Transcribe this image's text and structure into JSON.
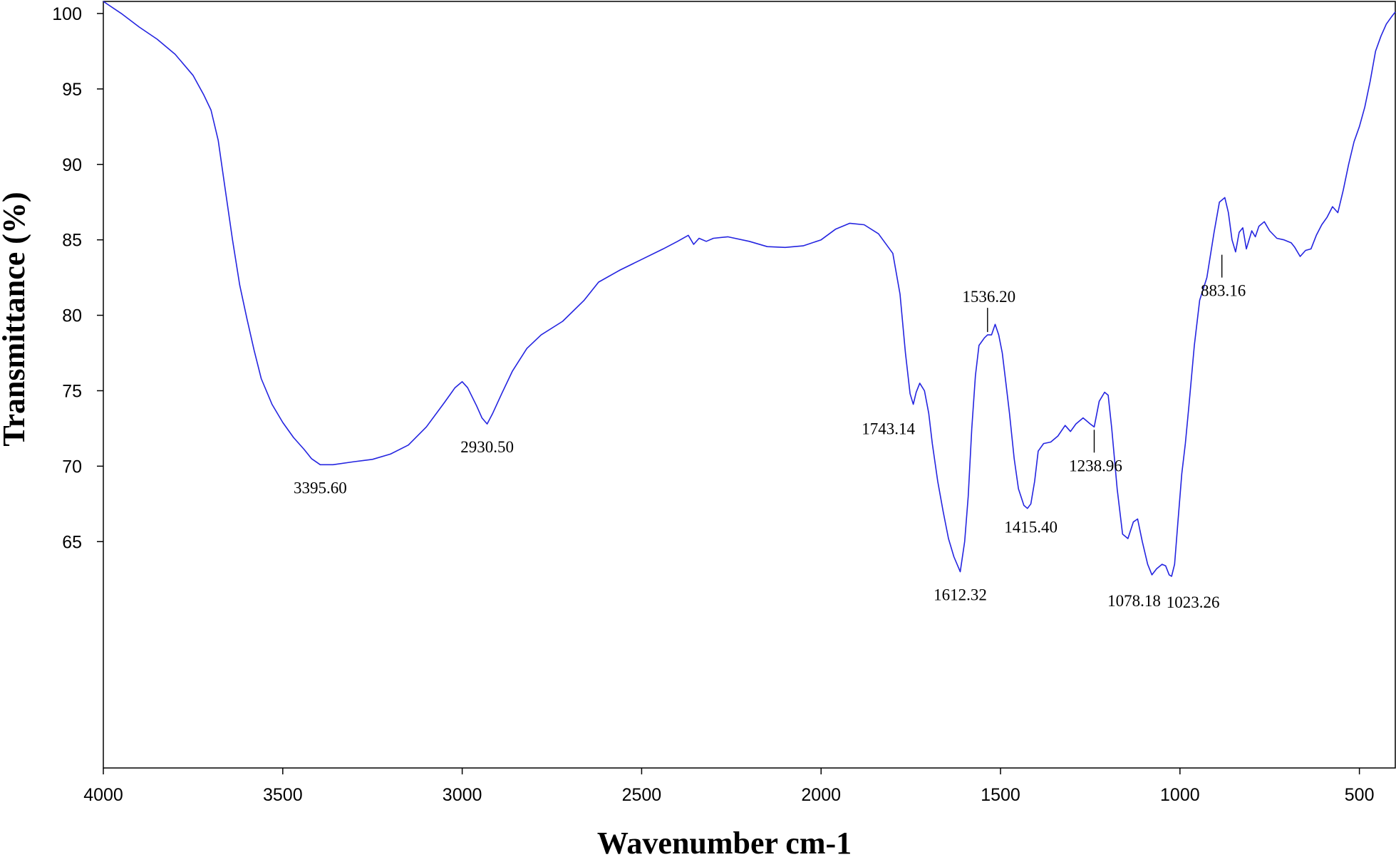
{
  "chart_data": {
    "type": "line",
    "title": "",
    "xlabel": "Wavenumber cm-1",
    "ylabel": "Transmittance (%)",
    "xlim": [
      4000,
      400
    ],
    "x_reversed": true,
    "ylim": [
      50,
      100.8
    ],
    "grid": false,
    "line_color": "#2424e0",
    "x_ticks": [
      4000,
      3500,
      3000,
      2500,
      2000,
      1500,
      1000,
      500
    ],
    "x_tick_labels": [
      "4000",
      "3500",
      "3000",
      "2500",
      "2000",
      "1500",
      "1000",
      "500"
    ],
    "y_ticks": [
      100,
      95,
      90,
      85,
      80,
      75,
      70,
      65
    ],
    "y_tick_labels": [
      "100",
      "95",
      "90",
      "85",
      "80",
      "75",
      "70",
      "65"
    ],
    "series": [
      {
        "points": [
          [
            4000,
            100.8
          ],
          [
            3950,
            100.0
          ],
          [
            3900,
            99.1
          ],
          [
            3850,
            98.3
          ],
          [
            3800,
            97.3
          ],
          [
            3750,
            95.9
          ],
          [
            3720,
            94.6
          ],
          [
            3700,
            93.6
          ],
          [
            3680,
            91.6
          ],
          [
            3660,
            88.3
          ],
          [
            3640,
            85.0
          ],
          [
            3620,
            82.0
          ],
          [
            3600,
            79.8
          ],
          [
            3580,
            77.7
          ],
          [
            3560,
            75.8
          ],
          [
            3530,
            74.1
          ],
          [
            3500,
            72.9
          ],
          [
            3470,
            71.9
          ],
          [
            3440,
            71.1
          ],
          [
            3420,
            70.5
          ],
          [
            3395.6,
            70.1
          ],
          [
            3360,
            70.1
          ],
          [
            3300,
            70.3
          ],
          [
            3250,
            70.45
          ],
          [
            3200,
            70.8
          ],
          [
            3150,
            71.4
          ],
          [
            3100,
            72.6
          ],
          [
            3050,
            74.2
          ],
          [
            3020,
            75.2
          ],
          [
            3000,
            75.6
          ],
          [
            2985,
            75.2
          ],
          [
            2960,
            74.0
          ],
          [
            2945,
            73.2
          ],
          [
            2930.5,
            72.8
          ],
          [
            2915,
            73.5
          ],
          [
            2890,
            74.8
          ],
          [
            2860,
            76.3
          ],
          [
            2820,
            77.8
          ],
          [
            2780,
            78.7
          ],
          [
            2720,
            79.6
          ],
          [
            2660,
            81.0
          ],
          [
            2620,
            82.2
          ],
          [
            2560,
            83.0
          ],
          [
            2500,
            83.7
          ],
          [
            2440,
            84.4
          ],
          [
            2400,
            84.9
          ],
          [
            2370,
            85.3
          ],
          [
            2355,
            84.7
          ],
          [
            2340,
            85.1
          ],
          [
            2320,
            84.9
          ],
          [
            2300,
            85.1
          ],
          [
            2260,
            85.2
          ],
          [
            2200,
            84.9
          ],
          [
            2150,
            84.55
          ],
          [
            2100,
            84.5
          ],
          [
            2050,
            84.6
          ],
          [
            2000,
            85.0
          ],
          [
            1960,
            85.7
          ],
          [
            1920,
            86.1
          ],
          [
            1880,
            86.0
          ],
          [
            1840,
            85.4
          ],
          [
            1800,
            84.1
          ],
          [
            1780,
            81.4
          ],
          [
            1765,
            77.5
          ],
          [
            1752,
            74.8
          ],
          [
            1743.14,
            74.1
          ],
          [
            1735,
            74.9
          ],
          [
            1725,
            75.5
          ],
          [
            1712,
            75.0
          ],
          [
            1700,
            73.5
          ],
          [
            1690,
            71.5
          ],
          [
            1675,
            69.0
          ],
          [
            1660,
            67.0
          ],
          [
            1645,
            65.2
          ],
          [
            1630,
            64.0
          ],
          [
            1612.32,
            63.0
          ],
          [
            1600,
            65.0
          ],
          [
            1590,
            68.0
          ],
          [
            1580,
            72.5
          ],
          [
            1570,
            76.0
          ],
          [
            1560,
            78.0
          ],
          [
            1545,
            78.5
          ],
          [
            1536.2,
            78.7
          ],
          [
            1525,
            78.7
          ],
          [
            1515,
            79.4
          ],
          [
            1505,
            78.7
          ],
          [
            1495,
            77.5
          ],
          [
            1485,
            75.5
          ],
          [
            1475,
            73.5
          ],
          [
            1462,
            70.5
          ],
          [
            1450,
            68.5
          ],
          [
            1435,
            67.4
          ],
          [
            1425,
            67.2
          ],
          [
            1415.4,
            67.5
          ],
          [
            1405,
            69.0
          ],
          [
            1395,
            71.0
          ],
          [
            1380,
            71.5
          ],
          [
            1360,
            71.6
          ],
          [
            1340,
            72.0
          ],
          [
            1320,
            72.7
          ],
          [
            1305,
            72.3
          ],
          [
            1290,
            72.8
          ],
          [
            1270,
            73.2
          ],
          [
            1250,
            72.8
          ],
          [
            1238.96,
            72.6
          ],
          [
            1225,
            74.3
          ],
          [
            1210,
            74.9
          ],
          [
            1200,
            74.7
          ],
          [
            1190,
            72.5
          ],
          [
            1175,
            68.5
          ],
          [
            1160,
            65.5
          ],
          [
            1145,
            65.2
          ],
          [
            1130,
            66.3
          ],
          [
            1118,
            66.5
          ],
          [
            1105,
            65.0
          ],
          [
            1090,
            63.5
          ],
          [
            1078.18,
            62.8
          ],
          [
            1065,
            63.2
          ],
          [
            1050,
            63.5
          ],
          [
            1040,
            63.4
          ],
          [
            1030,
            62.8
          ],
          [
            1023.26,
            62.7
          ],
          [
            1015,
            63.5
          ],
          [
            1005,
            66.5
          ],
          [
            995,
            69.5
          ],
          [
            985,
            71.5
          ],
          [
            975,
            74.0
          ],
          [
            960,
            78.0
          ],
          [
            945,
            81.0
          ],
          [
            925,
            82.5
          ],
          [
            905,
            85.5
          ],
          [
            890,
            87.5
          ],
          [
            875,
            87.8
          ],
          [
            865,
            86.8
          ],
          [
            855,
            85.0
          ],
          [
            845,
            84.2
          ],
          [
            835,
            85.5
          ],
          [
            825,
            85.8
          ],
          [
            815,
            84.4
          ],
          [
            800,
            85.6
          ],
          [
            790,
            85.2
          ],
          [
            780,
            85.9
          ],
          [
            765,
            86.2
          ],
          [
            750,
            85.6
          ],
          [
            730,
            85.1
          ],
          [
            710,
            85.0
          ],
          [
            690,
            84.8
          ],
          [
            680,
            84.5
          ],
          [
            665,
            83.9
          ],
          [
            650,
            84.3
          ],
          [
            635,
            84.4
          ],
          [
            620,
            85.3
          ],
          [
            605,
            86.0
          ],
          [
            590,
            86.5
          ],
          [
            575,
            87.2
          ],
          [
            560,
            86.8
          ],
          [
            545,
            88.3
          ],
          [
            530,
            90.0
          ],
          [
            515,
            91.5
          ],
          [
            500,
            92.5
          ],
          [
            485,
            93.8
          ],
          [
            470,
            95.5
          ],
          [
            455,
            97.5
          ],
          [
            440,
            98.5
          ],
          [
            425,
            99.3
          ],
          [
            410,
            99.8
          ],
          [
            400,
            100.1
          ]
        ]
      }
    ],
    "annotations": [
      {
        "label": "3395.60",
        "x": 3395.6,
        "y": 70.1,
        "leader": false
      },
      {
        "label": "2930.50",
        "x": 2930.5,
        "y": 72.8,
        "leader": false
      },
      {
        "label": "1743.14",
        "x": 1743.14,
        "y": 74.1,
        "leader": false
      },
      {
        "label": "1536.20",
        "x": 1536.2,
        "y": 78.7,
        "leader": true
      },
      {
        "label": "1612.32",
        "x": 1612.32,
        "y": 63.0,
        "leader": false
      },
      {
        "label": "1415.40",
        "x": 1415.4,
        "y": 67.5,
        "leader": false
      },
      {
        "label": "1238.96",
        "x": 1238.96,
        "y": 72.6,
        "leader": true
      },
      {
        "label": "1078.18",
        "x": 1078.18,
        "y": 62.8,
        "leader": false
      },
      {
        "label": "1023.26",
        "x": 1023.26,
        "y": 62.7,
        "leader": false
      },
      {
        "label": "883.16",
        "x": 883.16,
        "y": 84.2,
        "leader": true
      }
    ]
  }
}
